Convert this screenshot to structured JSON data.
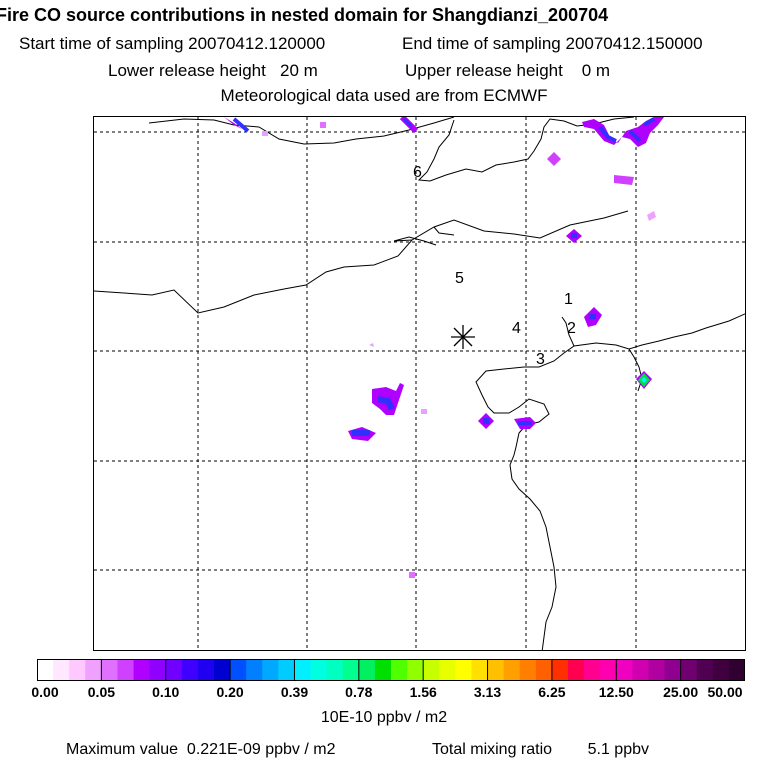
{
  "header": {
    "title": "Fire CO source contributions in nested domain for Shangdianzi_200704",
    "start_label": "Start time of sampling",
    "start_value": "20070412.120000",
    "end_label": "End time of sampling",
    "end_value": "20070412.150000",
    "lower_label": "Lower release height",
    "lower_value": "20 m",
    "upper_label": "Upper release height",
    "upper_value": "0 m",
    "met_line": "Meteorological data used are from ECMWF"
  },
  "map": {
    "station_marker": "asterisk-station-marker",
    "site_labels": [
      "1",
      "2",
      "3",
      "4",
      "5",
      "6"
    ],
    "plume_colors": {
      "pale": "#e6a0ff",
      "violet": "#b000ff",
      "blue": "#3030ff",
      "green": "#00e040"
    }
  },
  "legend": {
    "ticks": [
      "0.00",
      "0.05",
      "0.10",
      "0.20",
      "0.39",
      "0.78",
      "1.56",
      "3.13",
      "6.25",
      "12.50",
      "25.00",
      "50.00"
    ],
    "colors": [
      "#ffffff",
      "#ffe8ff",
      "#ffc8ff",
      "#f0a0ff",
      "#e070ff",
      "#d040ff",
      "#b000ff",
      "#9000ff",
      "#7000ff",
      "#4000ff",
      "#2000f0",
      "#0000d0",
      "#0050ff",
      "#0080ff",
      "#00a8ff",
      "#00ccff",
      "#00f0ff",
      "#00ffe0",
      "#00ffc0",
      "#00ff90",
      "#00f060",
      "#00e000",
      "#50ff00",
      "#90ff00",
      "#c8ff00",
      "#e8ff00",
      "#ffff00",
      "#ffe000",
      "#ffc000",
      "#ffa000",
      "#ff8000",
      "#ff6000",
      "#ff3000",
      "#ff0050",
      "#ff0090",
      "#ff00b0",
      "#f000c0",
      "#d000b0",
      "#b000a0",
      "#900090",
      "#700070",
      "#500050",
      "#400040",
      "#300030"
    ],
    "units": "10E-10 ppbv / m2"
  },
  "footer": {
    "max_label": "Maximum value",
    "max_value": "0.221E-09 ppbv / m2",
    "total_label": "Total mixing ratio",
    "total_value": "5.1 ppbv"
  }
}
